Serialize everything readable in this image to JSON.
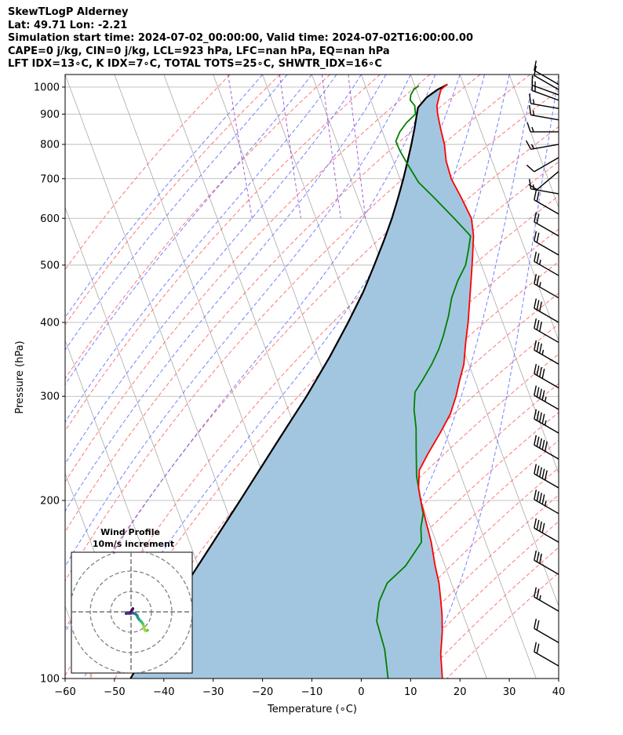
{
  "header": {
    "line1": "SkewTLogP Alderney",
    "line2": "Lat: 49.71   Lon: -2.21",
    "line3": "Simulation start time: 2024-07-02_00:00:00, Valid time: 2024-07-02T16:00:00.00",
    "line4": "CAPE=0 j/kg, CIN=0 j/kg, LCL=923 hPa, LFC=nan hPa, EQ=nan hPa",
    "line5": "LFT IDX=13∘C, K IDX=7∘C, TOTAL TOTS=25∘C, SHWTR_IDX=16∘C"
  },
  "chart_data": {
    "type": "skew-t log-p",
    "xlabel": "Temperature (∘C)",
    "ylabel": "Pressure (hPa)",
    "xlim": [
      -60,
      40
    ],
    "ylim": [
      1050,
      100
    ],
    "x_ticks": [
      -60,
      -50,
      -40,
      -30,
      -20,
      -10,
      0,
      10,
      20,
      30,
      40
    ],
    "x_tick_labels": [
      "−60",
      "−50",
      "−40",
      "−30",
      "−20",
      "−10",
      "0",
      "10",
      "20",
      "30",
      "40"
    ],
    "y_ticks": [
      1000,
      900,
      800,
      700,
      600,
      500,
      400,
      300,
      200,
      100
    ],
    "y_tick_labels": [
      "1000",
      "900",
      "800",
      "700",
      "600",
      "500",
      "400",
      "300",
      "200",
      "100"
    ],
    "skew_degrees_per_decade": 44.5,
    "temperature": {
      "name": "Temperature",
      "color": "#ff0000",
      "points": [
        [
          1010,
          16.6
        ],
        [
          990,
          15.0
        ],
        [
          960,
          14.0
        ],
        [
          930,
          13.0
        ],
        [
          900,
          12.5
        ],
        [
          850,
          12.0
        ],
        [
          800,
          11.6
        ],
        [
          750,
          10.7
        ],
        [
          700,
          10.4
        ],
        [
          650,
          11.0
        ],
        [
          600,
          11.5
        ],
        [
          560,
          10.6
        ],
        [
          520,
          9.0
        ],
        [
          480,
          7.2
        ],
        [
          440,
          5.2
        ],
        [
          400,
          3.0
        ],
        [
          370,
          1.0
        ],
        [
          340,
          -1.0
        ],
        [
          320,
          -3.0
        ],
        [
          300,
          -5.0
        ],
        [
          280,
          -7.5
        ],
        [
          260,
          -11.0
        ],
        [
          240,
          -15.0
        ],
        [
          225,
          -18.0
        ],
        [
          210,
          -19.5
        ],
        [
          200,
          -20.0
        ],
        [
          185,
          -20.5
        ],
        [
          170,
          -21.0
        ],
        [
          155,
          -22.0
        ],
        [
          145,
          -22.5
        ],
        [
          135,
          -23.5
        ],
        [
          128,
          -24.3
        ],
        [
          120,
          -25.5
        ],
        [
          110,
          -27.5
        ],
        [
          100,
          -29.0
        ]
      ]
    },
    "dewpoint": {
      "name": "Dewpoint",
      "color": "#008000",
      "points": [
        [
          1005,
          10.8
        ],
        [
          990,
          9.5
        ],
        [
          970,
          8.5
        ],
        [
          950,
          8.0
        ],
        [
          930,
          8.5
        ],
        [
          900,
          8.0
        ],
        [
          870,
          5.5
        ],
        [
          840,
          3.5
        ],
        [
          810,
          2.0
        ],
        [
          780,
          2.1
        ],
        [
          750,
          2.5
        ],
        [
          720,
          3.0
        ],
        [
          690,
          3.5
        ],
        [
          650,
          5.5
        ],
        [
          600,
          8.0
        ],
        [
          560,
          10.0
        ],
        [
          530,
          8.5
        ],
        [
          500,
          6.8
        ],
        [
          470,
          4.0
        ],
        [
          440,
          1.5
        ],
        [
          410,
          -0.5
        ],
        [
          380,
          -3.0
        ],
        [
          360,
          -5.0
        ],
        [
          340,
          -7.5
        ],
        [
          320,
          -10.5
        ],
        [
          305,
          -13.0
        ],
        [
          285,
          -14.5
        ],
        [
          265,
          -15.5
        ],
        [
          245,
          -17.0
        ],
        [
          220,
          -19.0
        ],
        [
          200,
          -20.0
        ],
        [
          190,
          -20.5
        ],
        [
          180,
          -22.0
        ],
        [
          170,
          -23.0
        ],
        [
          155,
          -28.0
        ],
        [
          145,
          -33.0
        ],
        [
          135,
          -36.0
        ],
        [
          125,
          -38.0
        ],
        [
          112,
          -38.5
        ],
        [
          100,
          -40.0
        ]
      ]
    },
    "parcel": {
      "name": "Parcel profile",
      "color": "#000000",
      "points": [
        [
          1010,
          16.7
        ],
        [
          990,
          14.3
        ],
        [
          960,
          11.5
        ],
        [
          923,
          9.0
        ],
        [
          900,
          8.3
        ],
        [
          850,
          6.7
        ],
        [
          800,
          4.9
        ],
        [
          750,
          2.9
        ],
        [
          700,
          0.7
        ],
        [
          650,
          -1.8
        ],
        [
          600,
          -4.6
        ],
        [
          550,
          -7.9
        ],
        [
          500,
          -11.7
        ],
        [
          450,
          -16.0
        ],
        [
          400,
          -21.3
        ],
        [
          350,
          -27.6
        ],
        [
          300,
          -35.3
        ],
        [
          250,
          -44.9
        ],
        [
          200,
          -56.6
        ],
        [
          150,
          -71.8
        ],
        [
          100,
          -92.2
        ]
      ]
    },
    "cape_cin_shading": {
      "color": "#a3c6e0",
      "description": "area between parcel and temperature"
    },
    "isotherms_color": "#aaaaaa",
    "dry_adiabats_color": "#ff5555",
    "moist_adiabats_color": "#4455ff",
    "mixing_ratio_color": "#9933cc",
    "wind_barbs": [
      {
        "p": 1010,
        "speed_kt": 10,
        "dir": 300
      },
      {
        "p": 990,
        "speed_kt": 10,
        "dir": 300
      },
      {
        "p": 970,
        "speed_kt": 15,
        "dir": 290
      },
      {
        "p": 950,
        "speed_kt": 15,
        "dir": 290
      },
      {
        "p": 920,
        "speed_kt": 15,
        "dir": 280
      },
      {
        "p": 880,
        "speed_kt": 15,
        "dir": 280
      },
      {
        "p": 840,
        "speed_kt": 15,
        "dir": 270
      },
      {
        "p": 800,
        "speed_kt": 15,
        "dir": 260
      },
      {
        "p": 760,
        "speed_kt": 10,
        "dir": 240
      },
      {
        "p": 720,
        "speed_kt": 10,
        "dir": 230
      },
      {
        "p": 660,
        "speed_kt": 15,
        "dir": 280
      },
      {
        "p": 610,
        "speed_kt": 20,
        "dir": 300
      },
      {
        "p": 560,
        "speed_kt": 20,
        "dir": 300
      },
      {
        "p": 520,
        "speed_kt": 20,
        "dir": 300
      },
      {
        "p": 480,
        "speed_kt": 25,
        "dir": 300
      },
      {
        "p": 440,
        "speed_kt": 25,
        "dir": 300
      },
      {
        "p": 400,
        "speed_kt": 30,
        "dir": 300
      },
      {
        "p": 370,
        "speed_kt": 30,
        "dir": 300
      },
      {
        "p": 340,
        "speed_kt": 35,
        "dir": 300
      },
      {
        "p": 310,
        "speed_kt": 40,
        "dir": 300
      },
      {
        "p": 285,
        "speed_kt": 45,
        "dir": 300
      },
      {
        "p": 260,
        "speed_kt": 45,
        "dir": 300
      },
      {
        "p": 235,
        "speed_kt": 50,
        "dir": 300
      },
      {
        "p": 210,
        "speed_kt": 50,
        "dir": 300
      },
      {
        "p": 190,
        "speed_kt": 45,
        "dir": 300
      },
      {
        "p": 170,
        "speed_kt": 40,
        "dir": 300
      },
      {
        "p": 150,
        "speed_kt": 30,
        "dir": 300
      },
      {
        "p": 130,
        "speed_kt": 25,
        "dir": 300
      },
      {
        "p": 115,
        "speed_kt": 20,
        "dir": 300
      },
      {
        "p": 105,
        "speed_kt": 20,
        "dir": 300
      }
    ],
    "hodograph": {
      "title": "Wind Profile",
      "subtitle": "10m/s increment",
      "rings": [
        10,
        20,
        30
      ],
      "points_uv": [
        [
          8.2,
          -9.0
        ],
        [
          7.6,
          -9.2
        ],
        [
          6.8,
          -9.1
        ],
        [
          6.5,
          -8.2
        ],
        [
          6.2,
          -7.0
        ],
        [
          5.8,
          -5.8
        ],
        [
          5.0,
          -4.8
        ],
        [
          4.0,
          -3.8
        ],
        [
          3.3,
          -2.8
        ],
        [
          3.0,
          -1.8
        ],
        [
          2.2,
          -1.0
        ],
        [
          1.0,
          -0.6
        ],
        [
          -0.5,
          -0.8
        ],
        [
          -1.5,
          -0.7
        ],
        [
          -2.4,
          -0.8
        ],
        [
          -2.0,
          -0.4
        ],
        [
          -1.2,
          -0.6
        ],
        [
          -0.2,
          -0.2
        ],
        [
          0.3,
          0.5
        ],
        [
          0.7,
          1.2
        ],
        [
          0.9,
          1.6
        ]
      ]
    }
  }
}
